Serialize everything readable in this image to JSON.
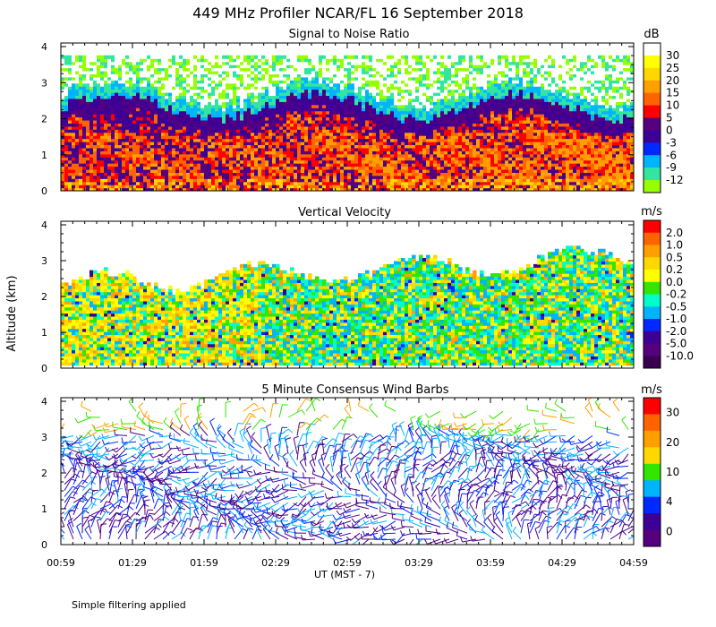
{
  "title": "449 MHz Profiler NCAR/FL 16 September 2018",
  "y_axis_label": "Altitude (km)",
  "x_axis_label": "UT  (MST - 7)",
  "footnote": "Simple filtering applied",
  "x_ticks": [
    "00:59",
    "01:29",
    "01:59",
    "02:29",
    "02:59",
    "03:29",
    "03:59",
    "04:29",
    "04:59"
  ],
  "y_ticks": [
    "0",
    "1",
    "2",
    "3",
    "4"
  ],
  "chart_data": [
    {
      "type": "heatmap",
      "title": "Signal to Noise Ratio",
      "unit": "dB",
      "x_range": [
        "00:59",
        "04:59"
      ],
      "ylim": [
        0,
        4
      ],
      "colorbar": {
        "labels": [
          "30",
          "25",
          "20",
          "15",
          "10",
          "5",
          "0",
          "-3",
          "-6",
          "-9",
          "-12"
        ],
        "colors": [
          "#ffffff",
          "#ffff00",
          "#ffd800",
          "#ffa000",
          "#ff6400",
          "#ff0000",
          "#55007f",
          "#3c0096",
          "#0028ff",
          "#00b4ff",
          "#32e6a0",
          "#96ff00"
        ]
      },
      "colors": {
        "strong": "#ff6400",
        "mid": "#55007f",
        "weak": "#00b4ff"
      }
    },
    {
      "type": "heatmap",
      "title": "Vertical Velocity",
      "unit": "m/s",
      "x_range": [
        "00:59",
        "04:59"
      ],
      "ylim": [
        0,
        4
      ],
      "colorbar": {
        "labels": [
          "2.0",
          "1.0",
          "0.5",
          "0.2",
          "0.0",
          "-0.2",
          "-0.5",
          "-1.0",
          "-2.0",
          "-5.0",
          "-10.0"
        ],
        "colors": [
          "#ff0000",
          "#ff6400",
          "#ffa000",
          "#ffd800",
          "#ffff00",
          "#32e600",
          "#00ffc8",
          "#00b4ff",
          "#0028ff",
          "#3c0096",
          "#55007f",
          "#3a004f"
        ]
      }
    },
    {
      "type": "scatter",
      "title": "5 Minute Consensus Wind Barbs",
      "unit": "m/s",
      "x_range": [
        "00:59",
        "04:59"
      ],
      "ylim": [
        0,
        4
      ],
      "colorbar": {
        "labels": [
          "30",
          "20",
          "10",
          "4",
          "0"
        ],
        "colors": [
          "#ff0000",
          "#ff6400",
          "#ffa000",
          "#ffd800",
          "#32e600",
          "#00b4ff",
          "#0028ff",
          "#3c0096",
          "#55007f"
        ]
      }
    }
  ]
}
